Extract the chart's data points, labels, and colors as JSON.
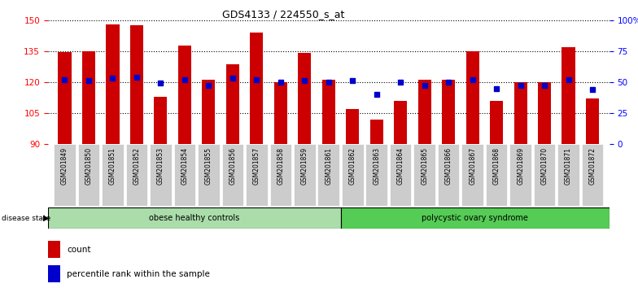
{
  "title": "GDS4133 / 224550_s_at",
  "samples": [
    "GSM201849",
    "GSM201850",
    "GSM201851",
    "GSM201852",
    "GSM201853",
    "GSM201854",
    "GSM201855",
    "GSM201856",
    "GSM201857",
    "GSM201858",
    "GSM201859",
    "GSM201861",
    "GSM201862",
    "GSM201863",
    "GSM201864",
    "GSM201865",
    "GSM201866",
    "GSM201867",
    "GSM201868",
    "GSM201869",
    "GSM201870",
    "GSM201871",
    "GSM201872"
  ],
  "count_values": [
    134.5,
    135.0,
    148.0,
    147.5,
    113.0,
    137.5,
    121.0,
    128.5,
    144.0,
    120.0,
    134.0,
    121.0,
    107.0,
    102.0,
    111.0,
    121.0,
    121.0,
    135.0,
    111.0,
    120.0,
    120.0,
    137.0,
    112.0
  ],
  "percentile_values": [
    52,
    51,
    53,
    54,
    49,
    52,
    47,
    53,
    52,
    50,
    51,
    50,
    51,
    40,
    50,
    47,
    50,
    52,
    45,
    47,
    47,
    52,
    44
  ],
  "groups": [
    {
      "label": "obese healthy controls",
      "start": 0,
      "end": 12,
      "color": "#aaddaa"
    },
    {
      "label": "polycystic ovary syndrome",
      "start": 12,
      "end": 23,
      "color": "#55cc55"
    }
  ],
  "ylim_left": [
    90,
    150
  ],
  "ylim_right": [
    0,
    100
  ],
  "yticks_left": [
    90,
    105,
    120,
    135,
    150
  ],
  "yticks_right": [
    0,
    25,
    50,
    75,
    100
  ],
  "bar_color": "#CC0000",
  "square_color": "#0000CC",
  "background_color": "#ffffff",
  "grid_color": "#000000",
  "legend_items": [
    "count",
    "percentile rank within the sample"
  ]
}
